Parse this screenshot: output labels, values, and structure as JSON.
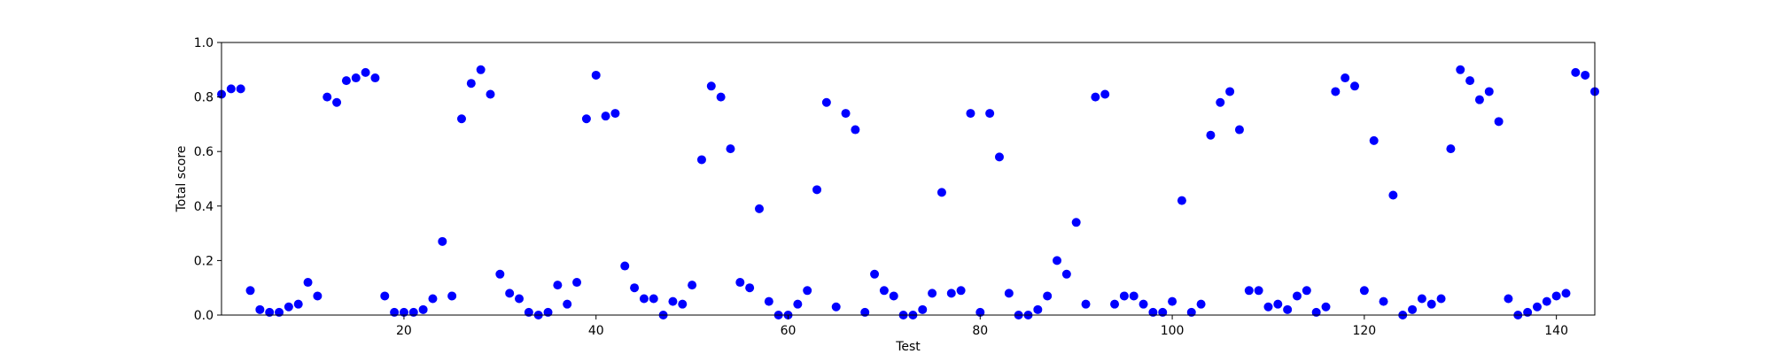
{
  "chart_data": {
    "type": "scatter",
    "xlabel": "Test",
    "ylabel": "Total score",
    "xlim": [
      1,
      144
    ],
    "ylim": [
      0.0,
      1.0
    ],
    "x_ticks": [
      20,
      40,
      60,
      80,
      100,
      120,
      140
    ],
    "y_ticks": [
      0.0,
      0.2,
      0.4,
      0.6,
      0.8,
      1.0
    ],
    "x_tick_labels": [
      "20",
      "40",
      "60",
      "80",
      "100",
      "120",
      "140"
    ],
    "y_tick_labels": [
      "0.0",
      "0.2",
      "0.4",
      "0.6",
      "0.8",
      "1.0"
    ],
    "grid": false,
    "marker_color": "#0000ff",
    "x": [
      1,
      2,
      3,
      4,
      5,
      6,
      7,
      8,
      9,
      10,
      11,
      12,
      13,
      14,
      15,
      16,
      17,
      18,
      19,
      20,
      21,
      22,
      23,
      24,
      25,
      26,
      27,
      28,
      29,
      30,
      31,
      32,
      33,
      34,
      35,
      36,
      37,
      38,
      39,
      40,
      41,
      42,
      43,
      44,
      45,
      46,
      47,
      48,
      49,
      50,
      51,
      52,
      53,
      54,
      55,
      56,
      57,
      58,
      59,
      60,
      61,
      62,
      63,
      64,
      65,
      66,
      67,
      68,
      69,
      70,
      71,
      72,
      73,
      74,
      75,
      76,
      77,
      78,
      79,
      80,
      81,
      82,
      83,
      84,
      85,
      86,
      87,
      88,
      89,
      90,
      91,
      92,
      93,
      94,
      95,
      96,
      97,
      98,
      99,
      100,
      101,
      102,
      103,
      104,
      105,
      106,
      107,
      108,
      109,
      110,
      111,
      112,
      113,
      114,
      115,
      116,
      117,
      118,
      119,
      120,
      121,
      122,
      123,
      124,
      125,
      126,
      127,
      128,
      129,
      130,
      131,
      132,
      133,
      134,
      135,
      136,
      137,
      138,
      139,
      140,
      141,
      142,
      143,
      144
    ],
    "y": [
      0.81,
      0.83,
      0.83,
      0.09,
      0.02,
      0.01,
      0.01,
      0.03,
      0.04,
      0.12,
      0.07,
      0.8,
      0.78,
      0.86,
      0.87,
      0.89,
      0.87,
      0.07,
      0.01,
      0.01,
      0.01,
      0.02,
      0.06,
      0.27,
      0.07,
      0.72,
      0.85,
      0.9,
      0.81,
      0.15,
      0.08,
      0.06,
      0.01,
      0.0,
      0.01,
      0.11,
      0.04,
      0.12,
      0.72,
      0.88,
      0.73,
      0.74,
      0.18,
      0.1,
      0.06,
      0.06,
      0.0,
      0.05,
      0.04,
      0.11,
      0.57,
      0.84,
      0.8,
      0.61,
      0.12,
      0.1,
      0.39,
      0.05,
      0.0,
      0.0,
      0.04,
      0.09,
      0.46,
      0.78,
      0.03,
      0.74,
      0.68,
      0.01,
      0.15,
      0.09,
      0.07,
      0.0,
      0.0,
      0.02,
      0.08,
      0.45,
      0.08,
      0.09,
      0.74,
      0.01,
      0.74,
      0.58,
      0.08,
      0.0,
      0.0,
      0.02,
      0.07,
      0.2,
      0.15,
      0.34,
      0.04,
      0.8,
      0.81,
      0.04,
      0.07,
      0.07,
      0.04,
      0.01,
      0.01,
      0.05,
      0.42,
      0.01,
      0.04,
      0.66,
      0.78,
      0.82,
      0.68,
      0.09,
      0.09,
      0.03,
      0.04,
      0.02,
      0.07,
      0.09,
      0.01,
      0.03,
      0.82,
      0.87,
      0.84,
      0.09,
      0.64,
      0.05,
      0.44,
      0.0,
      0.02,
      0.06,
      0.04,
      0.06,
      0.61,
      0.9,
      0.86,
      0.79,
      0.82,
      0.71,
      0.06,
      0.0,
      0.01,
      0.03,
      0.05,
      0.07,
      0.08,
      0.89,
      0.88,
      0.82
    ]
  }
}
